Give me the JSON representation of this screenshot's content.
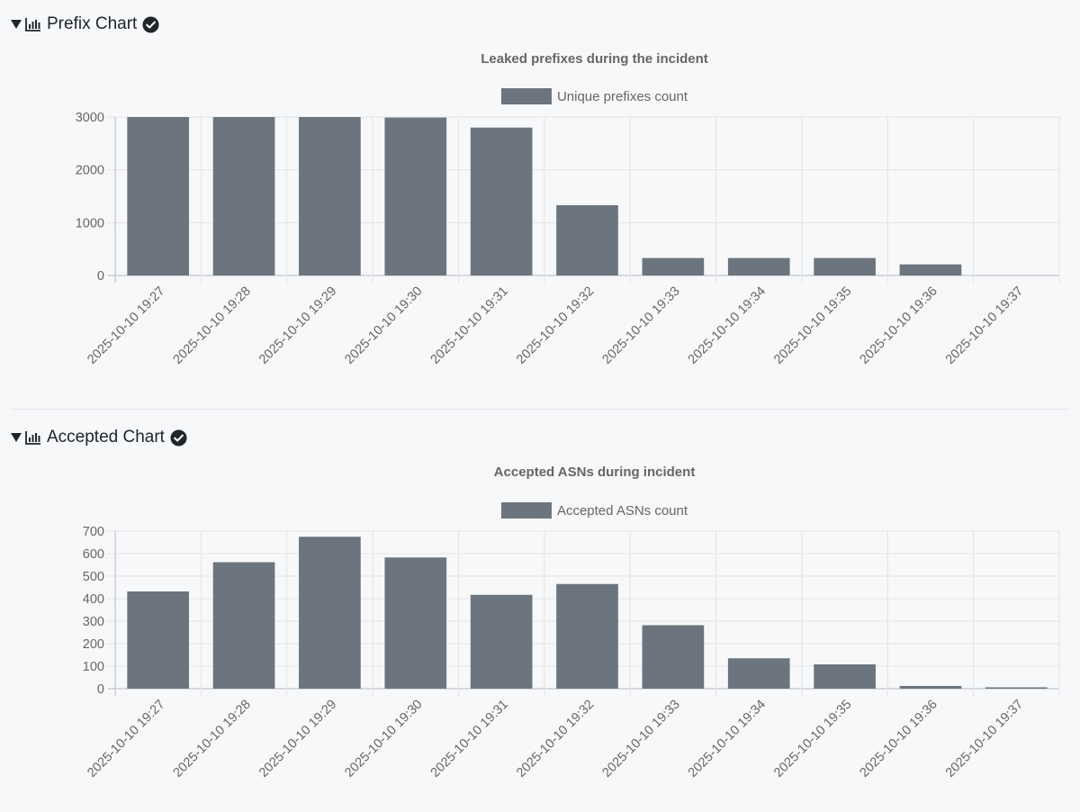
{
  "sections": [
    {
      "header_label": "Prefix Chart",
      "chart_icon": "bar-chart-icon",
      "status_icon": "check-circle-icon",
      "toggle_icon": "triangle-down-icon"
    },
    {
      "header_label": "Accepted Chart",
      "chart_icon": "bar-chart-icon",
      "status_icon": "check-circle-icon",
      "toggle_icon": "triangle-down-icon"
    }
  ],
  "colors": {
    "bar": "#6c757d",
    "grid": "#e3e4e6",
    "text": "#666666",
    "background": "#f7f8fa"
  },
  "chart_data": [
    {
      "type": "bar",
      "title": "Leaked prefixes during the incident",
      "categories": [
        "2025-10-10 19:27",
        "2025-10-10 19:28",
        "2025-10-10 19:29",
        "2025-10-10 19:30",
        "2025-10-10 19:31",
        "2025-10-10 19:32",
        "2025-10-10 19:33",
        "2025-10-10 19:34",
        "2025-10-10 19:35",
        "2025-10-10 19:36",
        "2025-10-10 19:37"
      ],
      "series": [
        {
          "name": "Unique prefixes count",
          "values": [
            3000,
            3000,
            3000,
            2990,
            2800,
            1330,
            330,
            330,
            330,
            210,
            0
          ]
        }
      ],
      "yticks": [
        0,
        1000,
        2000,
        3000
      ],
      "ylim": [
        0,
        3000
      ],
      "legend": "top-center",
      "grid": true
    },
    {
      "type": "bar",
      "title": "Accepted ASNs during incident",
      "categories": [
        "2025-10-10 19:27",
        "2025-10-10 19:28",
        "2025-10-10 19:29",
        "2025-10-10 19:30",
        "2025-10-10 19:31",
        "2025-10-10 19:32",
        "2025-10-10 19:33",
        "2025-10-10 19:34",
        "2025-10-10 19:35",
        "2025-10-10 19:36",
        "2025-10-10 19:37"
      ],
      "series": [
        {
          "name": "Accepted ASNs count",
          "values": [
            432,
            562,
            675,
            583,
            417,
            465,
            282,
            135,
            108,
            12,
            6
          ]
        }
      ],
      "yticks": [
        0,
        100,
        200,
        300,
        400,
        500,
        600,
        700
      ],
      "ylim": [
        0,
        700
      ],
      "legend": "top-center",
      "grid": true
    }
  ]
}
